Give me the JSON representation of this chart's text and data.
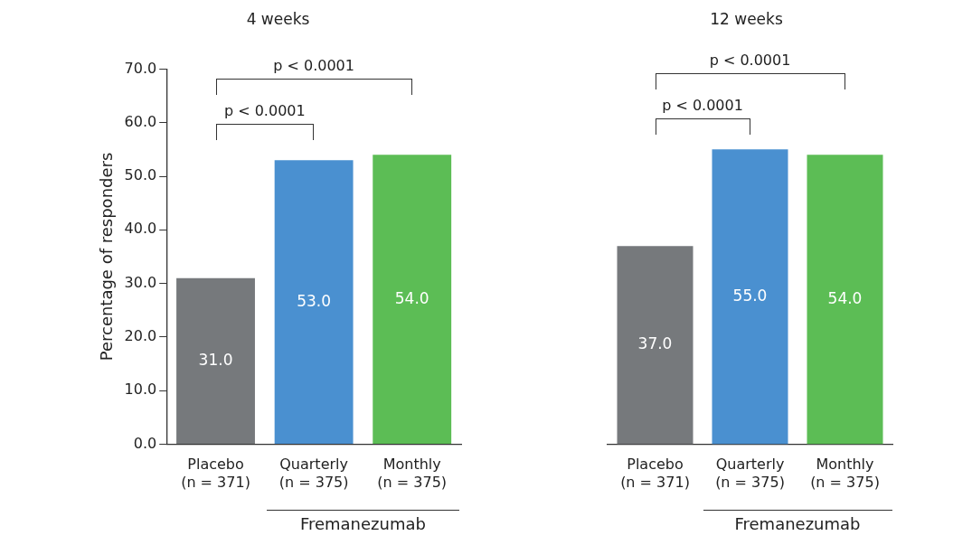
{
  "chart_data": [
    {
      "type": "bar",
      "title": "4 weeks",
      "ylabel": "Percentage of responders",
      "categories": [
        "Placebo\n(n = 371)",
        "Quarterly\n(n = 375)",
        "Monthly\n(n = 375)"
      ],
      "values": [
        31,
        53,
        54
      ],
      "colors": [
        "#76797c",
        "#4a90d0",
        "#5cbd55"
      ],
      "value_labels": [
        "31.0",
        "53.0",
        "54.0"
      ],
      "ylim": [
        0,
        70
      ],
      "yticks": [
        {
          "value": 0,
          "label": "0.0"
        },
        {
          "value": 10,
          "label": "10.0"
        },
        {
          "value": 20,
          "label": "20.0"
        },
        {
          "value": 30,
          "label": "30.0"
        },
        {
          "value": 40,
          "label": "40.0"
        },
        {
          "value": 50,
          "label": "50.0"
        },
        {
          "value": 60,
          "label": "60.0"
        },
        {
          "value": 70,
          "label": "70.0"
        }
      ],
      "annotations": [
        "p < 0.0001",
        "p < 0.0001",
        "Fremanezumab"
      ]
    },
    {
      "type": "bar",
      "title": "12 weeks",
      "categories": [
        "Placebo\n(n = 371)",
        "Quarterly\n(n = 375)",
        "Monthly\n(n = 375)"
      ],
      "values": [
        37,
        55,
        54
      ],
      "colors": [
        "#76797c",
        "#4a90d0",
        "#5cbd55"
      ],
      "value_labels": [
        "37.0",
        "55.0",
        "54.0"
      ],
      "ylim": [
        0,
        70
      ],
      "tick_labels": "x",
      "annotations": [
        "p < 0.0001",
        "p < 0.0001",
        "Fremanezumab"
      ]
    }
  ]
}
